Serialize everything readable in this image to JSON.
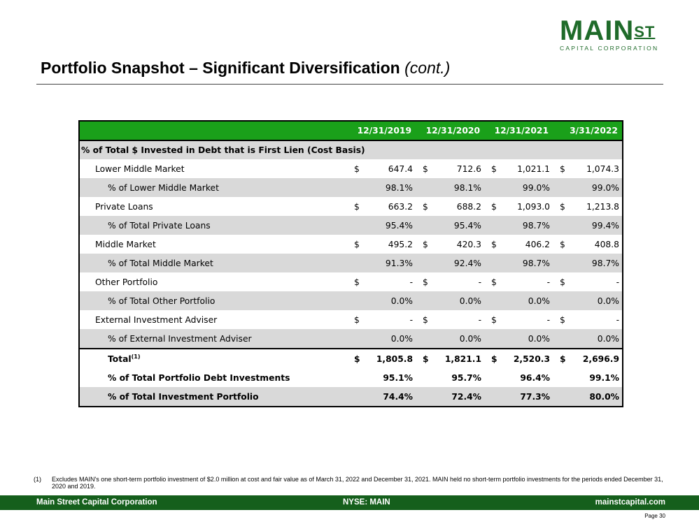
{
  "logo": {
    "main": "MAIN",
    "st": "ST",
    "sub": "CAPITAL CORPORATION"
  },
  "title": {
    "main": "Portfolio Snapshot – Significant Diversification",
    "cont": "(cont.)"
  },
  "table": {
    "headers": [
      "12/31/2019",
      "12/31/2020",
      "12/31/2021",
      "3/31/2022"
    ],
    "section_label": "% of Total $ Invested in Debt that is First Lien (Cost Basis)",
    "rows": [
      {
        "label": "Lower Middle Market",
        "currency": "$",
        "values": [
          "647.4",
          "712.6",
          "1,021.1",
          "1,074.3"
        ]
      },
      {
        "label": "% of Lower Middle Market",
        "values": [
          "98.1%",
          "98.1%",
          "99.0%",
          "99.0%"
        ]
      },
      {
        "label": "Private Loans",
        "currency": "$",
        "values": [
          "663.2",
          "688.2",
          "1,093.0",
          "1,213.8"
        ]
      },
      {
        "label": "% of Total Private Loans",
        "values": [
          "95.4%",
          "95.4%",
          "98.7%",
          "99.4%"
        ]
      },
      {
        "label": "Middle Market",
        "currency": "$",
        "values": [
          "495.2",
          "420.3",
          "406.2",
          "408.8"
        ]
      },
      {
        "label": "% of Total Middle Market",
        "values": [
          "91.3%",
          "92.4%",
          "98.7%",
          "98.7%"
        ]
      },
      {
        "label": "Other Portfolio",
        "currency": "$",
        "values": [
          "-",
          "-",
          "-",
          "-"
        ]
      },
      {
        "label": "% of Total Other Portfolio",
        "values": [
          "0.0%",
          "0.0%",
          "0.0%",
          "0.0%"
        ]
      },
      {
        "label": "External Investment Adviser",
        "currency": "$",
        "values": [
          "-",
          "-",
          "-",
          "-"
        ]
      },
      {
        "label": "% of External Investment Adviser",
        "values": [
          "0.0%",
          "0.0%",
          "0.0%",
          "0.0%"
        ]
      },
      {
        "label": "Total",
        "sup": "(1)",
        "currency": "$",
        "values": [
          "1,805.8",
          "1,821.1",
          "2,520.3",
          "2,696.9"
        ]
      },
      {
        "label": "% of Total Portfolio Debt Investments",
        "values": [
          "95.1%",
          "95.7%",
          "96.4%",
          "99.1%"
        ]
      },
      {
        "label": "% of Total Investment Portfolio",
        "values": [
          "74.4%",
          "72.4%",
          "77.3%",
          "80.0%"
        ]
      }
    ]
  },
  "footnote": {
    "num": "(1)",
    "text": "Excludes MAIN's one short-term portfolio investment of $2.0 million at cost and fair value as of March 31, 2022 and December 31, 2021.  MAIN held no short-term portfolio investments for the periods ended December 31, 2020 and 2019."
  },
  "footer": {
    "left": "Main Street Capital Corporation",
    "center": "NYSE: MAIN",
    "right": "mainstcapital.com"
  },
  "page": "Page  30",
  "colors": {
    "brand_green": "#1f6b2a",
    "header_green": "#1aa01a",
    "footer_green": "#155f1c",
    "shade": "#d9d9d9"
  }
}
